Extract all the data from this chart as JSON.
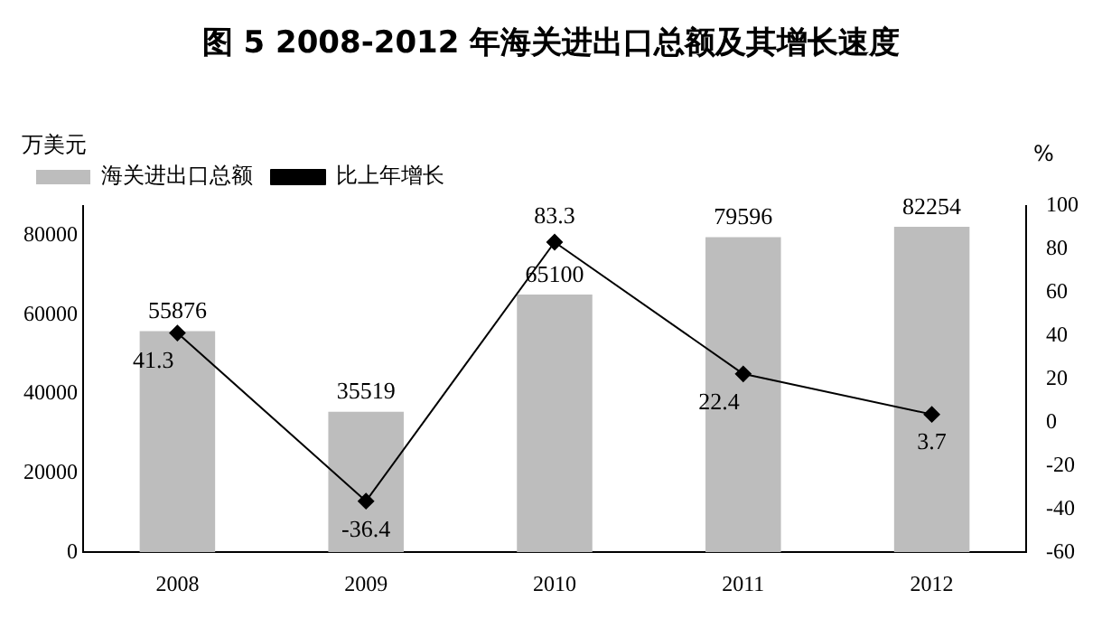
{
  "chart_data": {
    "type": "bar",
    "title": "图 5 2008-2012 年海关进出口总额及其增长速度",
    "ylabel": "万美元",
    "y2label": "%",
    "categories": [
      "2008",
      "2009",
      "2010",
      "2011",
      "2012"
    ],
    "series": [
      {
        "name": "海关进出口总额",
        "color": "#bdbdbd",
        "values": [
          55876,
          35519,
          65100,
          79596,
          82254
        ]
      },
      {
        "name": "比上年增长",
        "type": "line",
        "axis": "y2",
        "color": "#000000",
        "values": [
          41.3,
          -36.4,
          83.3,
          22.4,
          3.7
        ]
      }
    ],
    "ylim": [
      0,
      87500
    ],
    "yticks": [
      0,
      20000,
      40000,
      60000,
      80000
    ],
    "y2lim": [
      -60,
      100
    ],
    "y2ticks": [
      -60,
      -40,
      -20,
      0,
      20,
      40,
      60,
      80,
      100
    ],
    "data_labels": true,
    "marker": "diamond",
    "grid": false,
    "legend": "top"
  }
}
